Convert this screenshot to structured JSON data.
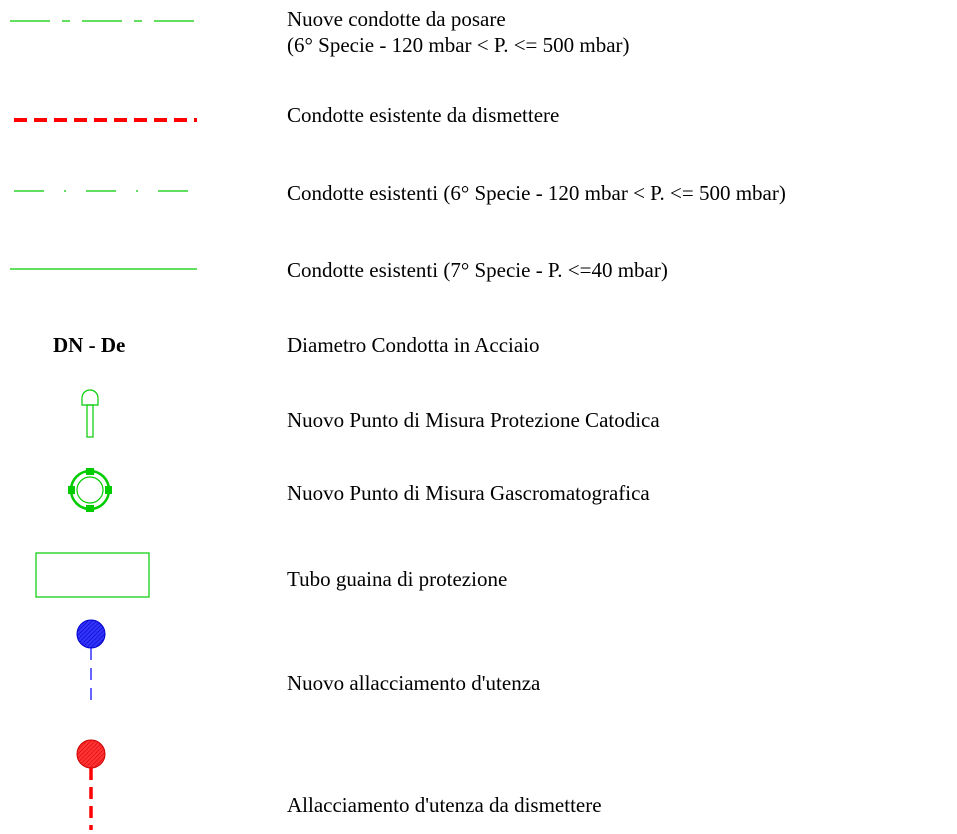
{
  "legend": {
    "items": [
      {
        "lines": [
          "Nuove condotte da posare",
          "(6° Specie - 120 mbar < P. <= 500 mbar)"
        ],
        "symbol": "green-dash-dot-line",
        "color": "#00cc00"
      },
      {
        "lines": [
          "Condotte esistente da dismettere"
        ],
        "symbol": "red-dashed-line",
        "color": "#ff0000"
      },
      {
        "lines": [
          "Condotte esistenti (6° Specie - 120 mbar < P. <= 500 mbar)"
        ],
        "symbol": "green-dash-dot-line-thin",
        "color": "#00cc00"
      },
      {
        "lines": [
          "Condotte esistenti (7° Specie - P. <=40 mbar)"
        ],
        "symbol": "green-solid-line",
        "color": "#00cc00"
      },
      {
        "lines": [
          "Diametro Condotta in Acciaio"
        ],
        "symbol_text": "DN - De"
      },
      {
        "lines": [
          "Nuovo Punto di Misura Protezione Catodica"
        ],
        "symbol": "cathodic-probe-icon",
        "color": "#00cc00"
      },
      {
        "lines": [
          "Nuovo Punto di Misura Gascromatografica"
        ],
        "symbol": "gas-chromatography-ring-icon",
        "color": "#00cc00"
      },
      {
        "lines": [
          "Tubo guaina di protezione"
        ],
        "symbol": "sleeve-rectangle-icon",
        "color": "#00cc00"
      },
      {
        "lines": [
          "Nuovo allacciamento d'utenza"
        ],
        "symbol": "blue-connection-icon",
        "color": "#0000ff"
      },
      {
        "lines": [
          "Allacciamento d'utenza da dismettere"
        ],
        "symbol": "red-connection-icon",
        "color": "#ff0000"
      }
    ]
  }
}
